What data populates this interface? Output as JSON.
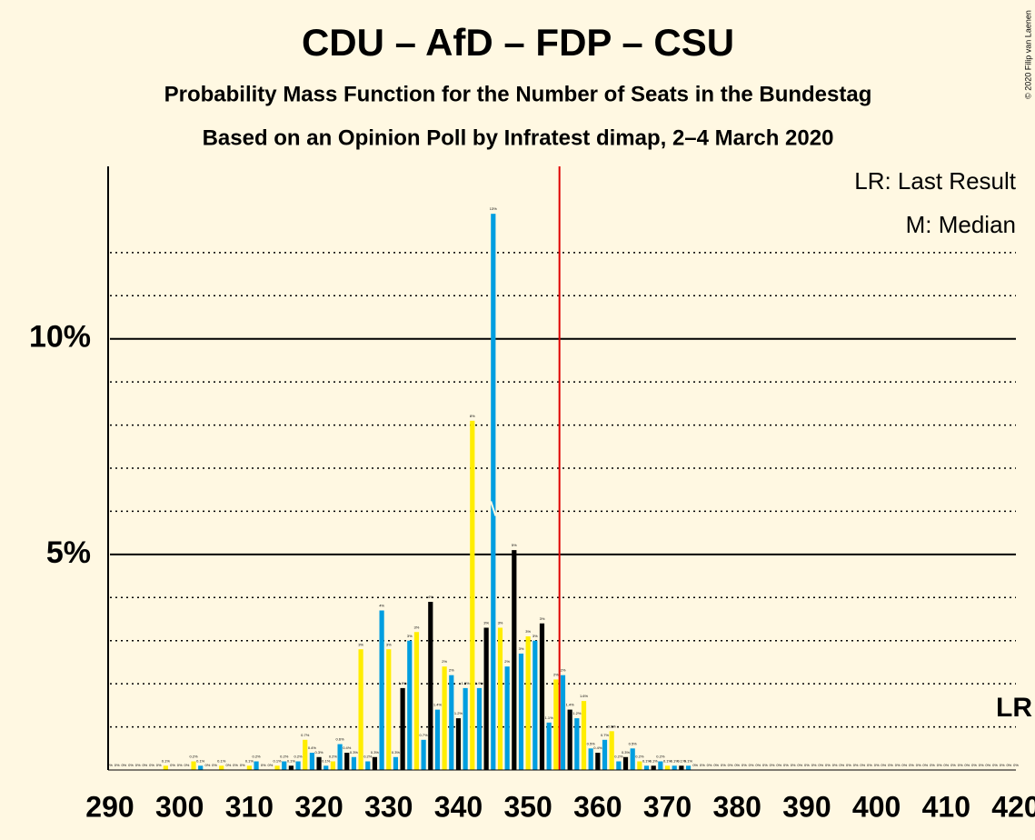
{
  "chart_data": {
    "type": "bar",
    "title": "CDU – AfD – FDP – CSU",
    "subtitle": "Probability Mass Function for the Number of Seats in the Bundestag",
    "subtitle2": "Based on an Opinion Poll by Infratest dimap, 2–4 March 2020",
    "copyright": "© 2020 Filip van Laenen",
    "legend": [
      "LR: Last Result",
      "M: Median"
    ],
    "lr_label": "LR",
    "median": 345,
    "majority": 355,
    "color_cycle": [
      "#ffed00",
      "#009ee0",
      "#000000",
      "#009ee0"
    ],
    "x": [
      290,
      291,
      292,
      293,
      294,
      295,
      296,
      297,
      298,
      299,
      300,
      301,
      302,
      303,
      304,
      305,
      306,
      307,
      308,
      309,
      310,
      311,
      312,
      313,
      314,
      315,
      316,
      317,
      318,
      319,
      320,
      321,
      322,
      323,
      324,
      325,
      326,
      327,
      328,
      329,
      330,
      331,
      332,
      333,
      334,
      335,
      336,
      337,
      338,
      339,
      340,
      341,
      342,
      343,
      344,
      345,
      346,
      347,
      348,
      349,
      350,
      351,
      352,
      353,
      354,
      355,
      356,
      357,
      358,
      359,
      360,
      361,
      362,
      363,
      364,
      365,
      366,
      367,
      368,
      369,
      370,
      371,
      372,
      373,
      374,
      375,
      376,
      377,
      378,
      379,
      380,
      381,
      382,
      383,
      384,
      385,
      386,
      387,
      388,
      389,
      390,
      391,
      392,
      393,
      394,
      395,
      396,
      397,
      398,
      399,
      400,
      401,
      402,
      403,
      404,
      405,
      406,
      407,
      408,
      409,
      410,
      411,
      412,
      413,
      414,
      415,
      416,
      417,
      418,
      419,
      420
    ],
    "values": [
      0,
      0,
      0,
      0,
      0,
      0,
      0,
      0,
      0.1,
      0,
      0,
      0,
      0.2,
      0.1,
      0,
      0,
      0.1,
      0,
      0,
      0,
      0.1,
      0.2,
      0,
      0,
      0.1,
      0.2,
      0.1,
      0.2,
      0.7,
      0.4,
      0.3,
      0.1,
      0.2,
      0.6,
      0.4,
      0.3,
      2.8,
      0.2,
      0.3,
      3.7,
      2.8,
      0.3,
      1.9,
      3,
      3.2,
      0.7,
      3.9,
      1.4,
      2.4,
      2.2,
      1.2,
      1.9,
      8.1,
      1.9,
      3.3,
      12.9,
      3.3,
      2.4,
      5.1,
      2.7,
      3.1,
      3,
      3.4,
      1.1,
      2.1,
      2.2,
      1.4,
      1.2,
      1.6,
      0.5,
      0.4,
      0.7,
      0.9,
      0.2,
      0.3,
      0.5,
      0.2,
      0.1,
      0.1,
      0.2,
      0.1,
      0.1,
      0.1,
      0.1,
      0,
      0,
      0,
      0,
      0,
      0,
      0,
      0,
      0,
      0,
      0,
      0,
      0,
      0,
      0,
      0,
      0,
      0,
      0,
      0,
      0,
      0,
      0,
      0,
      0,
      0,
      0,
      0,
      0,
      0,
      0,
      0,
      0,
      0,
      0,
      0,
      0,
      0,
      0,
      0,
      0,
      0,
      0,
      0,
      0,
      0,
      0
    ],
    "value_labels": [
      "0%",
      "0%",
      "0%",
      "0%",
      "0%",
      "0%",
      "0%",
      "0%",
      "0.1%",
      "0%",
      "0%",
      "0%",
      "0.2%",
      "0.1%",
      "0%",
      "0%",
      "0.1%",
      "0%",
      "0%",
      "0%",
      "0.1%",
      "0.2%",
      "0%",
      "0%",
      "0.1%",
      "0.2%",
      "0.1%",
      "0.2%",
      "0.7%",
      "0.4%",
      "0.3%",
      "0.1%",
      "0.2%",
      "0.6%",
      "0.4%",
      "0.3%",
      "3%",
      "0.2%",
      "0.3%",
      "4%",
      "3%",
      "0.3%",
      "1.9%",
      "3%",
      "3%",
      "0.7%",
      "4%",
      "1.4%",
      "2%",
      "2%",
      "1.2%",
      "1.9%",
      "8%",
      "1.9%",
      "3%",
      "13%",
      "3%",
      "2%",
      "5%",
      "3%",
      "3%",
      "3%",
      "3%",
      "1.1%",
      "2%",
      "2%",
      "1.4%",
      "1.2%",
      "1.6%",
      "0.5%",
      "0.4%",
      "0.7%",
      "0.9%",
      "0.2%",
      "0.3%",
      "0.5%",
      "0.2%",
      "0.1%",
      "0.1%",
      "0.2%",
      "0.1%",
      "0.1%",
      "0.1%",
      "0.1%",
      "0%",
      "0%",
      "0%",
      "0%",
      "0%",
      "0%",
      "0%",
      "0%",
      "0%",
      "0%",
      "0%",
      "0%",
      "0%",
      "0%",
      "0%",
      "0%",
      "0%",
      "0%",
      "0%",
      "0%",
      "0%",
      "0%",
      "0%",
      "0%",
      "0%",
      "0%",
      "0%",
      "0%",
      "0%",
      "0%",
      "0%",
      "0%",
      "0%",
      "0%",
      "0%",
      "0%",
      "0%",
      "0%",
      "0%",
      "0%",
      "0%",
      "0%",
      "0%",
      "0%",
      "0%",
      "0%",
      "0%"
    ],
    "xlim": [
      290,
      420
    ],
    "xticks": [
      290,
      300,
      310,
      320,
      330,
      340,
      350,
      360,
      370,
      380,
      390,
      400,
      410,
      420
    ],
    "ylim": [
      0,
      14
    ],
    "yticks": [
      {
        "value": 5,
        "label": "5%"
      },
      {
        "value": 10,
        "label": "10%"
      }
    ],
    "minor_grid": [
      1,
      2,
      3,
      4,
      6,
      7,
      8,
      9,
      11,
      12
    ]
  }
}
